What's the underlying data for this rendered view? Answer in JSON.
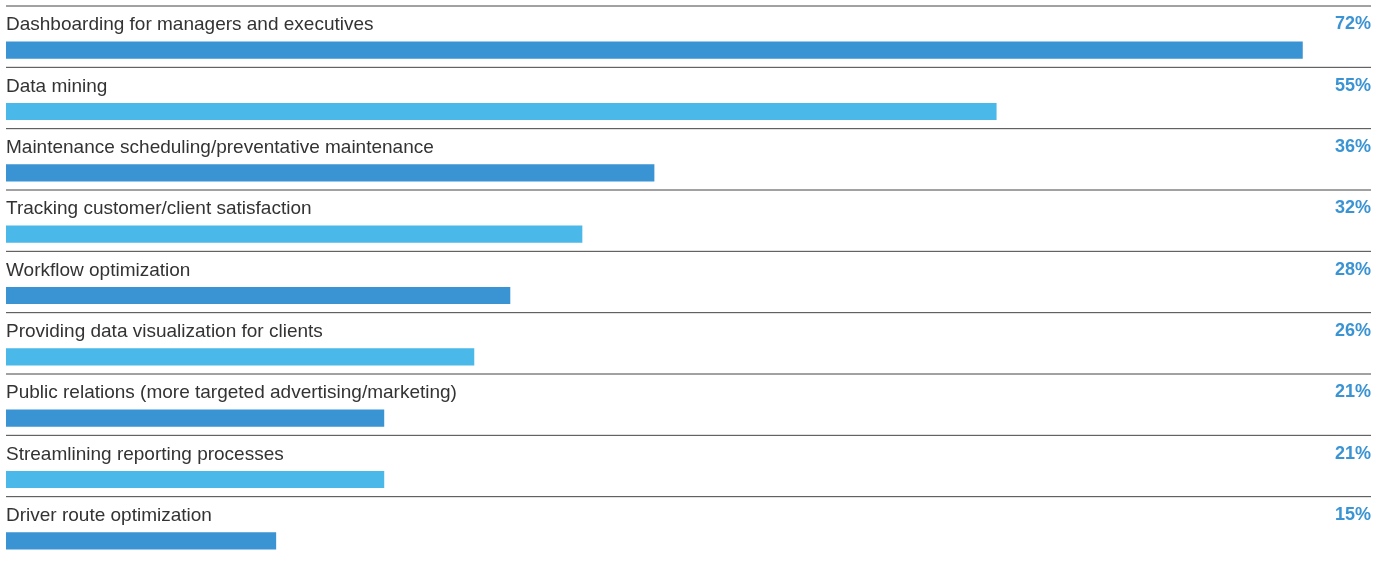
{
  "chart_data": {
    "type": "bar",
    "orientation": "horizontal",
    "value_labels": [
      "72%",
      "55%",
      "36%",
      "32%",
      "28%",
      "26%",
      "21%",
      "21%",
      "15%"
    ],
    "categories": [
      "Dashboarding for managers and executives",
      "Data mining",
      "Maintenance scheduling/preventative maintenance",
      "Tracking customer/client satisfaction",
      "Workflow optimization",
      "Providing data visualization for clients",
      "Public relations (more targeted advertising/marketing)",
      "Streamlining reporting processes",
      "Driver route optimization"
    ],
    "values": [
      72,
      55,
      36,
      32,
      28,
      26,
      21,
      21,
      15
    ],
    "colors": [
      "#3a93d3",
      "#4ab8e8",
      "#3a93d3",
      "#4ab8e8",
      "#3a93d3",
      "#4ab8e8",
      "#3a93d3",
      "#4ab8e8",
      "#3a93d3"
    ]
  }
}
